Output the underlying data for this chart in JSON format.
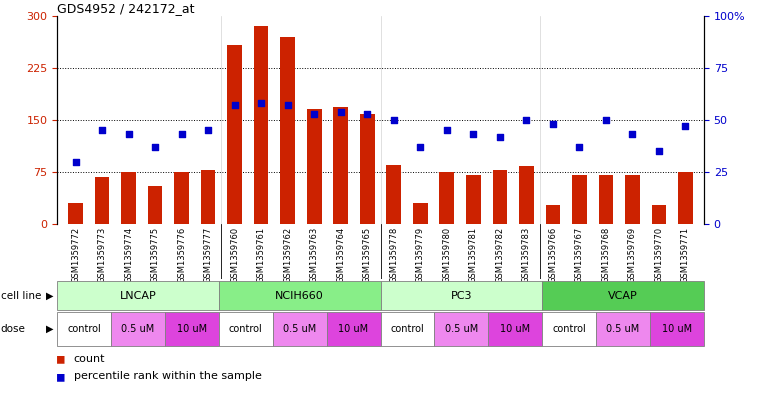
{
  "title": "GDS4952 / 242172_at",
  "samples": [
    "GSM1359772",
    "GSM1359773",
    "GSM1359774",
    "GSM1359775",
    "GSM1359776",
    "GSM1359777",
    "GSM1359760",
    "GSM1359761",
    "GSM1359762",
    "GSM1359763",
    "GSM1359764",
    "GSM1359765",
    "GSM1359778",
    "GSM1359779",
    "GSM1359780",
    "GSM1359781",
    "GSM1359782",
    "GSM1359783",
    "GSM1359766",
    "GSM1359767",
    "GSM1359768",
    "GSM1359769",
    "GSM1359770",
    "GSM1359771"
  ],
  "counts": [
    30,
    68,
    75,
    55,
    75,
    78,
    258,
    285,
    270,
    165,
    168,
    158,
    85,
    30,
    75,
    70,
    78,
    83,
    28,
    70,
    70,
    70,
    28,
    75
  ],
  "percentiles": [
    30,
    45,
    43,
    37,
    43,
    45,
    57,
    58,
    57,
    53,
    54,
    53,
    50,
    37,
    45,
    43,
    42,
    50,
    48,
    37,
    50,
    43,
    35,
    47
  ],
  "cell_lines": [
    {
      "name": "LNCAP",
      "start": 0,
      "end": 6,
      "color": "#ccffcc"
    },
    {
      "name": "NCIH660",
      "start": 6,
      "end": 12,
      "color": "#88ee88"
    },
    {
      "name": "PC3",
      "start": 12,
      "end": 18,
      "color": "#ccffcc"
    },
    {
      "name": "VCAP",
      "start": 18,
      "end": 24,
      "color": "#55cc55"
    }
  ],
  "doses": [
    {
      "name": "control",
      "color": "#ffffff"
    },
    {
      "name": "0.5 uM",
      "color": "#ee88ee"
    },
    {
      "name": "10 uM",
      "color": "#dd44dd"
    },
    {
      "name": "control",
      "color": "#ffffff"
    },
    {
      "name": "0.5 uM",
      "color": "#ee88ee"
    },
    {
      "name": "10 uM",
      "color": "#dd44dd"
    },
    {
      "name": "control",
      "color": "#ffffff"
    },
    {
      "name": "0.5 uM",
      "color": "#ee88ee"
    },
    {
      "name": "10 uM",
      "color": "#dd44dd"
    },
    {
      "name": "control",
      "color": "#ffffff"
    },
    {
      "name": "0.5 uM",
      "color": "#ee88ee"
    },
    {
      "name": "10 uM",
      "color": "#dd44dd"
    }
  ],
  "bar_color": "#cc2200",
  "dot_color": "#0000cc",
  "ylim_left": [
    0,
    300
  ],
  "ylim_right": [
    0,
    100
  ],
  "yticks_left": [
    0,
    75,
    150,
    225,
    300
  ],
  "yticks_right": [
    0,
    25,
    50,
    75,
    100
  ],
  "ytick_labels_left": [
    "0",
    "75",
    "150",
    "225",
    "300"
  ],
  "ytick_labels_right": [
    "0",
    "25",
    "50",
    "75",
    "100%"
  ],
  "hlines": [
    75,
    150,
    225
  ],
  "legend_count_label": "count",
  "legend_pct_label": "percentile rank within the sample",
  "bar_width": 0.55,
  "group_separators": [
    5.5,
    11.5,
    17.5
  ],
  "tick_color_left": "#cc2200",
  "tick_color_right": "#0000cc",
  "sample_bg_color": "#cccccc",
  "cell_line_label": "cell line",
  "dose_label": "dose"
}
